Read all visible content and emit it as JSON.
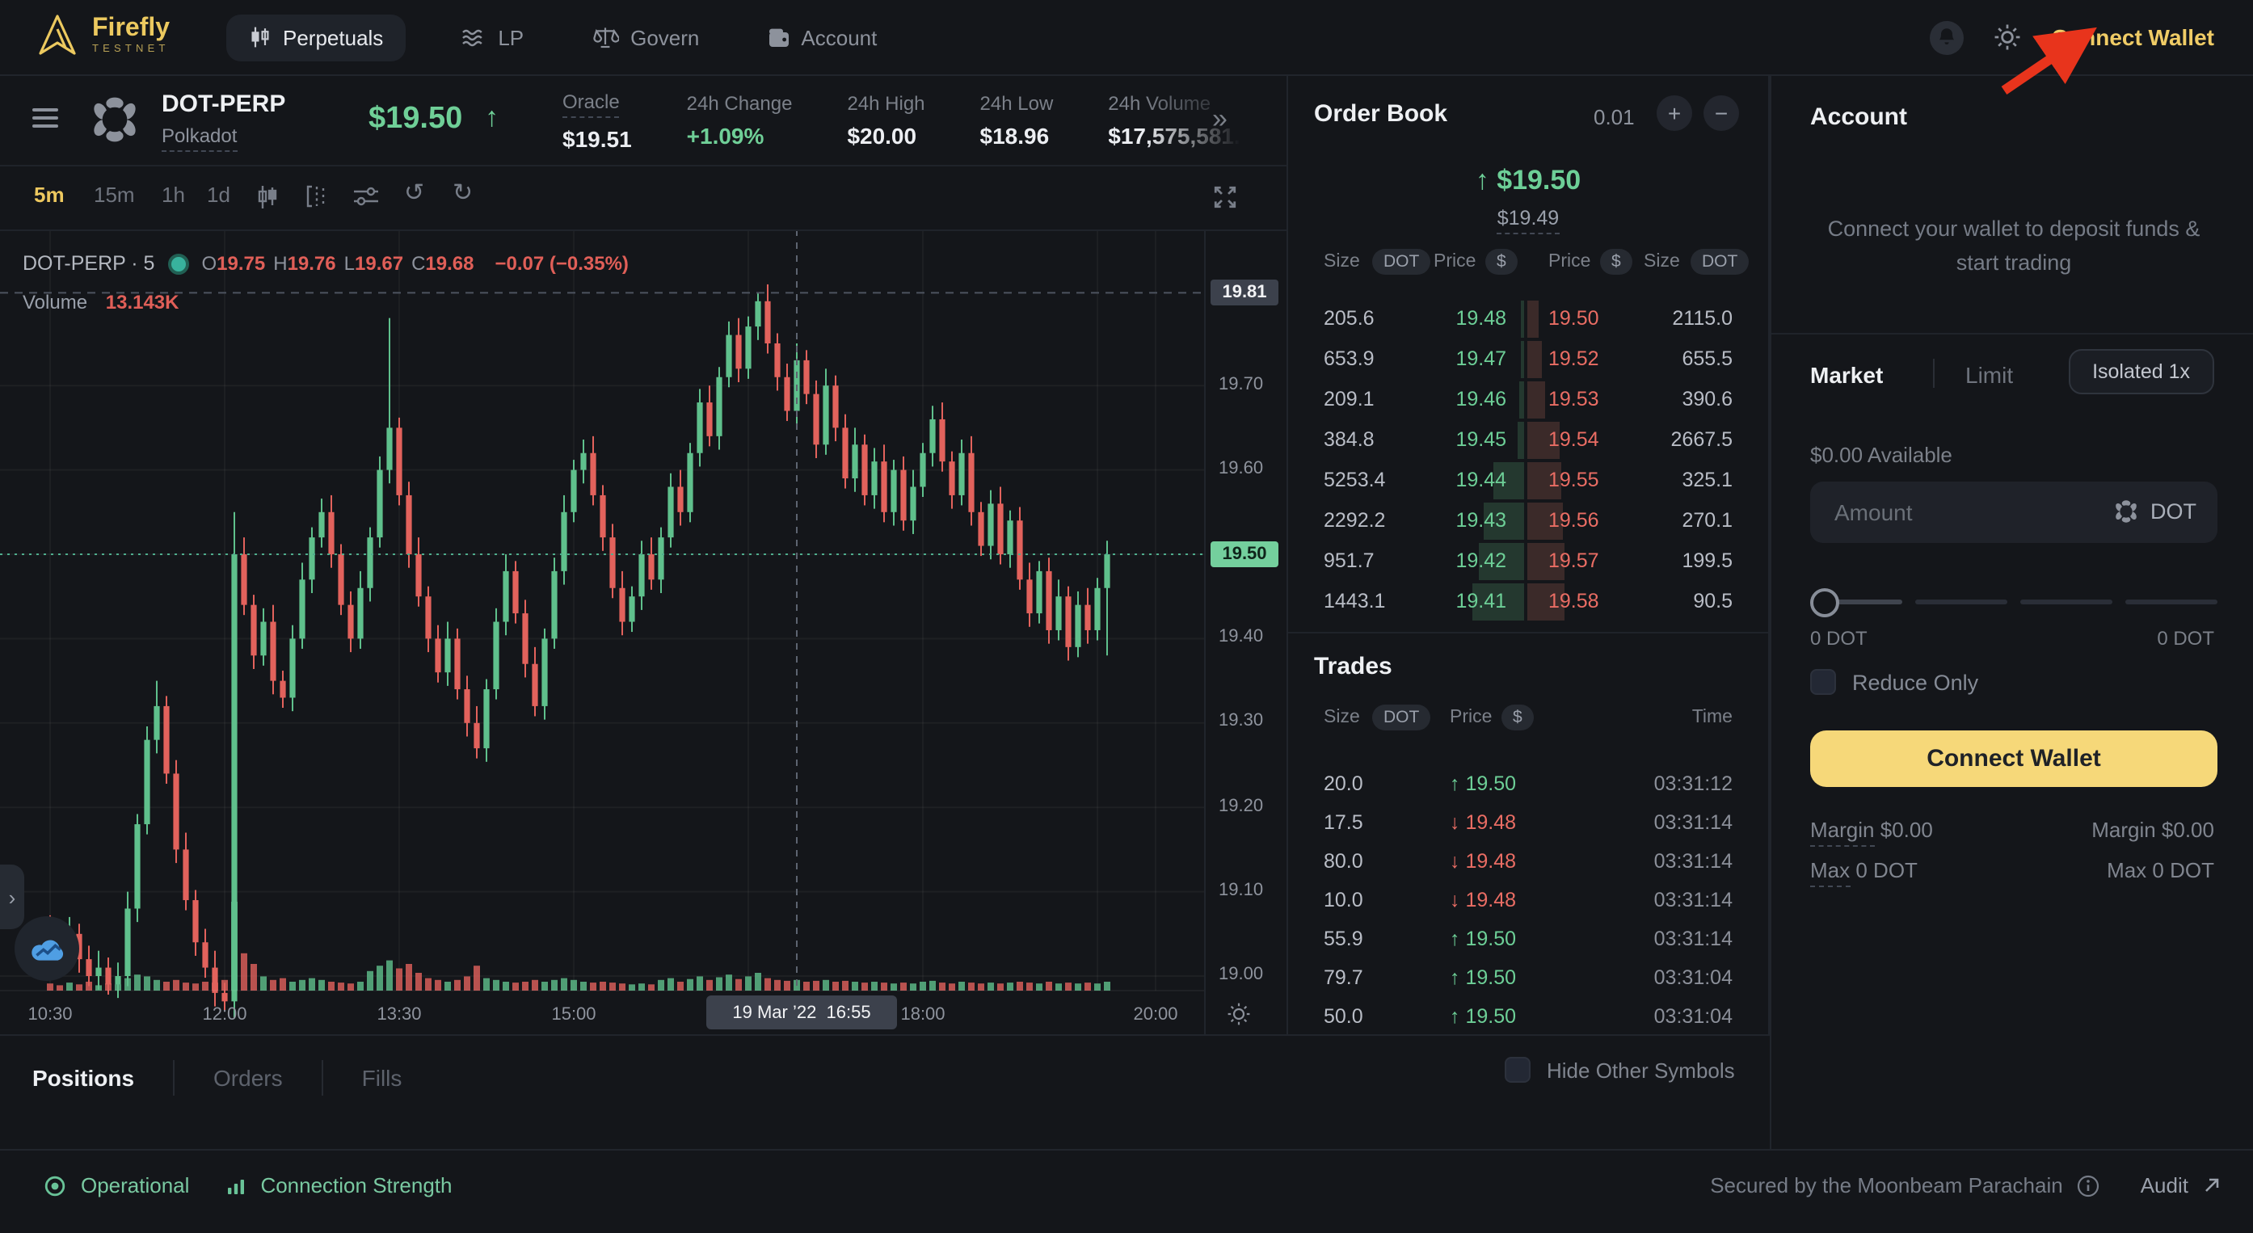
{
  "colors": {
    "accent_gold": "#eec95f",
    "button_yellow": "#f6d879",
    "green": "#6dcf97",
    "red": "#ea6d64",
    "candle_green": "#5fc08c",
    "candle_red": "#e2625c",
    "arrow_red": "#e8341c",
    "panel_bg": "#14161a"
  },
  "nav": {
    "brand": "Firefly",
    "brand_sub": "TESTNET",
    "tabs": [
      {
        "label": "Perpetuals",
        "icon": "candles",
        "active": true
      },
      {
        "label": "LP",
        "icon": "waves",
        "active": false
      },
      {
        "label": "Govern",
        "icon": "scales",
        "active": false
      },
      {
        "label": "Account",
        "icon": "wallet",
        "active": false
      }
    ],
    "connect_wallet": "Connect Wallet"
  },
  "market_header": {
    "symbol": "DOT-PERP",
    "name": "Polkadot",
    "price": "$19.50",
    "stats": [
      {
        "label": "Oracle",
        "value": "$19.51",
        "dashed": true
      },
      {
        "label": "24h Change",
        "value": "+1.09%",
        "positive": true
      },
      {
        "label": "24h High",
        "value": "$20.00"
      },
      {
        "label": "24h Low",
        "value": "$18.96"
      },
      {
        "label": "24h Volume",
        "value": "$17,575,581.8",
        "faded": true
      }
    ]
  },
  "chart": {
    "timeframes": [
      "5m",
      "15m",
      "1h",
      "1d"
    ],
    "active_timeframe": "5m",
    "legend": {
      "title": "DOT-PERP · 5",
      "pairs": [
        {
          "k": "O",
          "v": "19.75"
        },
        {
          "k": "H",
          "v": "19.76"
        },
        {
          "k": "L",
          "v": "19.67"
        },
        {
          "k": "C",
          "v": "19.68"
        }
      ],
      "change": "−0.07 (−0.35%)"
    },
    "volume_label": "Volume",
    "volume_value": "13.143K"
  },
  "chart_data": {
    "type": "candlestick",
    "interval": "5m",
    "symbol": "DOT-PERP",
    "high_marker": "19.81",
    "current_label": "19.50",
    "current_price": 19.5,
    "y_ticks": [
      "19.70",
      "19.60",
      "19.40",
      "19.30",
      "19.20",
      "19.10",
      "19.00"
    ],
    "x_ticks": [
      {
        "label": "10:30",
        "i": 0
      },
      {
        "label": "12:00",
        "i": 18
      },
      {
        "label": "13:30",
        "i": 36
      },
      {
        "label": "15:00",
        "i": 54
      },
      {
        "label": "",
        "i": 72
      },
      {
        "label": "18:00",
        "i": 90
      },
      {
        "label": "",
        "i": 108
      },
      {
        "label": "20:00",
        "i": 114
      }
    ],
    "crosshair": {
      "index": 77,
      "label": "19 Mar ’22  16:55"
    },
    "open_first": 19.06,
    "closes": [
      19.04,
      19.03,
      19.05,
      19.02,
      19.0,
      19.01,
      18.99,
      19.0,
      19.08,
      19.18,
      19.28,
      19.32,
      19.24,
      19.15,
      19.09,
      19.04,
      19.01,
      18.98,
      18.97,
      19.5,
      19.44,
      19.38,
      19.42,
      19.35,
      19.33,
      19.4,
      19.47,
      19.52,
      19.55,
      19.5,
      19.44,
      19.4,
      19.46,
      19.52,
      19.6,
      19.65,
      19.57,
      19.5,
      19.45,
      19.4,
      19.36,
      19.4,
      19.34,
      19.3,
      19.27,
      19.34,
      19.42,
      19.48,
      19.43,
      19.37,
      19.32,
      19.4,
      19.48,
      19.55,
      19.6,
      19.62,
      19.57,
      19.52,
      19.46,
      19.42,
      19.45,
      19.5,
      19.47,
      19.52,
      19.58,
      19.55,
      19.62,
      19.68,
      19.64,
      19.71,
      19.76,
      19.72,
      19.77,
      19.8,
      19.75,
      19.71,
      19.67,
      19.73,
      19.69,
      19.63,
      19.7,
      19.65,
      19.59,
      19.63,
      19.57,
      19.61,
      19.55,
      19.6,
      19.54,
      19.58,
      19.62,
      19.66,
      19.61,
      19.57,
      19.62,
      19.55,
      19.51,
      19.56,
      19.5,
      19.54,
      19.47,
      19.43,
      19.48,
      19.41,
      19.45,
      19.39,
      19.44,
      19.41,
      19.46,
      19.5
    ],
    "volumes_rel": [
      0.08,
      0.06,
      0.09,
      0.07,
      0.1,
      0.06,
      0.08,
      0.07,
      0.14,
      0.18,
      0.16,
      0.12,
      0.1,
      0.12,
      0.09,
      0.08,
      0.1,
      0.09,
      0.12,
      1.0,
      0.42,
      0.3,
      0.16,
      0.12,
      0.14,
      0.1,
      0.12,
      0.14,
      0.12,
      0.1,
      0.09,
      0.08,
      0.1,
      0.22,
      0.28,
      0.34,
      0.25,
      0.3,
      0.2,
      0.14,
      0.12,
      0.1,
      0.12,
      0.16,
      0.28,
      0.14,
      0.12,
      0.1,
      0.09,
      0.1,
      0.12,
      0.1,
      0.12,
      0.14,
      0.12,
      0.1,
      0.09,
      0.1,
      0.09,
      0.08,
      0.07,
      0.08,
      0.07,
      0.12,
      0.14,
      0.1,
      0.13,
      0.16,
      0.12,
      0.15,
      0.18,
      0.13,
      0.16,
      0.2,
      0.14,
      0.12,
      0.11,
      0.12,
      0.1,
      0.11,
      0.12,
      0.1,
      0.11,
      0.1,
      0.09,
      0.1,
      0.09,
      0.08,
      0.09,
      0.08,
      0.1,
      0.11,
      0.09,
      0.08,
      0.1,
      0.09,
      0.08,
      0.09,
      0.08,
      0.09,
      0.1,
      0.09,
      0.08,
      0.1,
      0.08,
      0.09,
      0.08,
      0.09,
      0.08,
      0.1
    ],
    "wick_overrides": {
      "11": {
        "h": 19.35
      },
      "19": {
        "h": 19.55,
        "l": 18.95
      },
      "35": {
        "h": 19.78
      },
      "73": {
        "h": 19.81
      },
      "109": {
        "l": 19.38
      }
    }
  },
  "order_book": {
    "title": "Order Book",
    "tick_size": "0.01",
    "current_price": "↑ $19.50",
    "mark_price": "$19.49",
    "headers": {
      "size": "Size",
      "unit": "DOT",
      "price": "Price",
      "currency": "$",
      "time": "Time"
    },
    "bids": [
      {
        "size": "205.6",
        "price": "19.48"
      },
      {
        "size": "653.9",
        "price": "19.47"
      },
      {
        "size": "209.1",
        "price": "19.46"
      },
      {
        "size": "384.8",
        "price": "19.45"
      },
      {
        "size": "5253.4",
        "price": "19.44"
      },
      {
        "size": "2292.2",
        "price": "19.43"
      },
      {
        "size": "951.7",
        "price": "19.42"
      },
      {
        "size": "1443.1",
        "price": "19.41"
      }
    ],
    "asks": [
      {
        "price": "19.50",
        "size": "2115.0"
      },
      {
        "price": "19.52",
        "size": "655.5"
      },
      {
        "price": "19.53",
        "size": "390.6"
      },
      {
        "price": "19.54",
        "size": "2667.5"
      },
      {
        "price": "19.55",
        "size": "325.1"
      },
      {
        "price": "19.56",
        "size": "270.1"
      },
      {
        "price": "19.57",
        "size": "199.5"
      },
      {
        "price": "19.58",
        "size": "90.5"
      }
    ]
  },
  "trades": {
    "title": "Trades",
    "rows": [
      {
        "size": "20.0",
        "dir": "up",
        "price": "19.50",
        "time": "03:31:12"
      },
      {
        "size": "17.5",
        "dir": "down",
        "price": "19.48",
        "time": "03:31:14"
      },
      {
        "size": "80.0",
        "dir": "down",
        "price": "19.48",
        "time": "03:31:14"
      },
      {
        "size": "10.0",
        "dir": "down",
        "price": "19.48",
        "time": "03:31:14"
      },
      {
        "size": "55.9",
        "dir": "up",
        "price": "19.50",
        "time": "03:31:14"
      },
      {
        "size": "79.7",
        "dir": "up",
        "price": "19.50",
        "time": "03:31:04"
      },
      {
        "size": "50.0",
        "dir": "up",
        "price": "19.50",
        "time": "03:31:04"
      }
    ]
  },
  "account_panel": {
    "title": "Account",
    "message": "Connect your wallet to deposit funds & start trading"
  },
  "trade_form": {
    "tab_market": "Market",
    "tab_limit": "Limit",
    "active_tab": "Market",
    "isolated": "Isolated 1x",
    "available": "$0.00 Available",
    "amount_placeholder": "Amount",
    "asset": "DOT",
    "slider_left": "0 DOT",
    "slider_right": "0 DOT",
    "reduce_only": "Reduce Only",
    "submit": "Connect Wallet",
    "margin_label": "Margin",
    "margin_left": "$0.00",
    "margin_right": "Margin $0.00",
    "max_label": "Max",
    "max_left": "0 DOT",
    "max_right": "Max 0 DOT"
  },
  "bottom_tabs": {
    "tabs": [
      {
        "label": "Positions",
        "active": true
      },
      {
        "label": "Orders",
        "active": false
      },
      {
        "label": "Fills",
        "active": false
      }
    ],
    "hide_other": "Hide Other Symbols"
  },
  "footer": {
    "status": "Operational",
    "connection": "Connection Strength",
    "secured": "Secured by the Moonbeam Parachain",
    "audit": "Audit"
  }
}
